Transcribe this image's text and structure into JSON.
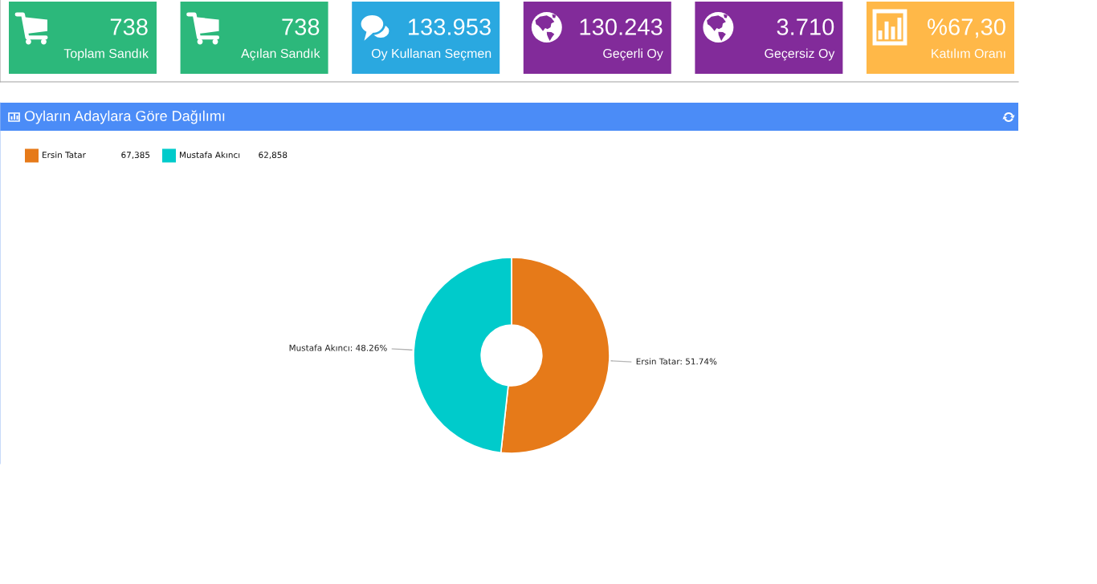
{
  "chart_data": [
    {
      "type": "other",
      "annotations": [
        "738",
        "Toplam Sandık",
        "738",
        "Açılan Sandık",
        "133.953",
        "Oy Kullanan Seçmen",
        "130.243",
        "Geçerli Oy",
        "3.710",
        "Geçersiz Oy",
        "%67,30",
        "Katılım Oranı"
      ],
      "colors": [
        "#2cb87b",
        "#2cb87b",
        "#2aa8e0",
        "#822b9a",
        "#822b9a",
        "#ffb848"
      ]
    },
    {
      "type": "donut",
      "title": "Oyların Adaylara Göre Dağılımı",
      "categories": [
        "Ersin Tatar",
        "Mustafa Akıncı"
      ],
      "values": [
        51.74,
        48.26
      ],
      "colors": [
        "#e67a19",
        "#00cbcb"
      ],
      "value_labels": [
        "Ersin Tatar: 51.74%",
        "Mustafa Akıncı: 48.26%"
      ],
      "annotations": [
        "67,385",
        "62,858"
      ],
      "legend": "top left"
    }
  ]
}
